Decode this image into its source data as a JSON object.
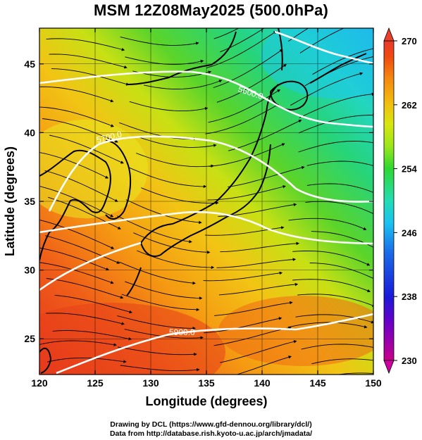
{
  "title": "MSM 12Z08May2025 (500.0hPa)",
  "footer": {
    "line1": "Drawing by DCL (https://www.gfd-dennou.org/library/dcl/)",
    "line2": "Data from http://database.rish.kyoto-u.ac.jp/arch/jmadata/"
  },
  "map": {
    "xlabel": "Longitude (degrees)",
    "ylabel": "Latitude  (degrees)",
    "xlim": [
      120,
      150
    ],
    "ylim": [
      22.4,
      47.6
    ],
    "xticks": [
      120,
      125,
      130,
      135,
      140,
      145,
      150
    ],
    "yticks": [
      25,
      30,
      35,
      40,
      45
    ],
    "contours": [
      {
        "label": "5600.0"
      },
      {
        "label": "5700.0"
      },
      {
        "label": "5900.0"
      }
    ]
  },
  "colorbar": {
    "min": 230,
    "max": 270,
    "ticks": [
      270,
      262,
      254,
      246,
      238,
      230
    ],
    "colors": [
      "#c8008a",
      "#7a00c8",
      "#1a1ad8",
      "#1a6de8",
      "#19c2f0",
      "#24dcb4",
      "#2ed832",
      "#9ae61a",
      "#d4e610",
      "#f0c010",
      "#f58a10",
      "#f04a10",
      "#e83a2a"
    ]
  }
}
